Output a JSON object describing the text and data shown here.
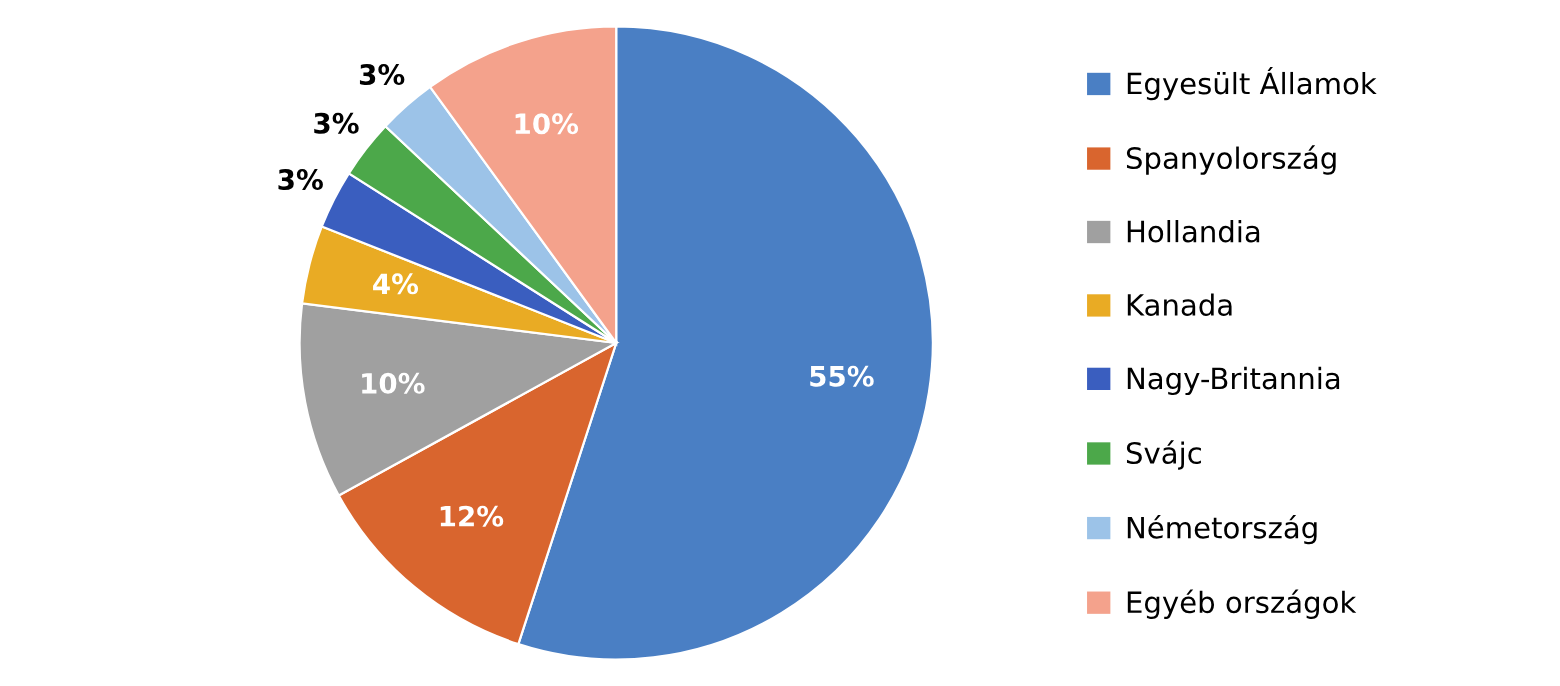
{
  "chart_data": {
    "type": "pie",
    "categories": [
      "Egyesült Államok",
      "Spanyolország",
      "Hollandia",
      "Kanada",
      "Nagy-Britannia",
      "Svájc",
      "Németország",
      "Egyéb országok"
    ],
    "values": [
      55,
      12,
      10,
      4,
      3,
      3,
      3,
      10
    ],
    "value_labels": [
      "55%",
      "12%",
      "10%",
      "4%",
      "3%",
      "3%",
      "3%",
      "10%"
    ],
    "colors": [
      "#4a7fc4",
      "#d9652e",
      "#a0a0a0",
      "#e9ab24",
      "#3a5ebf",
      "#4ca84a",
      "#9cc3e8",
      "#f4a28c"
    ],
    "legend": "right"
  }
}
